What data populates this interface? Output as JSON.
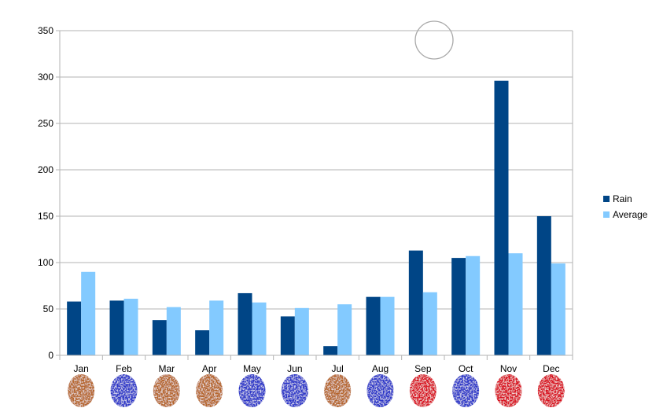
{
  "chart_data": {
    "type": "bar",
    "categories": [
      "Jan",
      "Feb",
      "Mar",
      "Apr",
      "May",
      "Jun",
      "Jul",
      "Aug",
      "Sep",
      "Oct",
      "Nov",
      "Dec"
    ],
    "series": [
      {
        "name": "Rain",
        "color": "#004586",
        "values": [
          58,
          59,
          38,
          27,
          67,
          42,
          10,
          63,
          113,
          105,
          296,
          150
        ]
      },
      {
        "name": "Average",
        "color": "#83caff",
        "values": [
          90,
          61,
          52,
          59,
          57,
          51,
          55,
          63,
          68,
          107,
          110,
          99
        ]
      }
    ],
    "ylim": [
      0,
      350
    ],
    "yticks": [
      0,
      50,
      100,
      150,
      200,
      250,
      300,
      350
    ],
    "grid": true,
    "legend_position": "right",
    "category_icons": [
      {
        "category": "Jan",
        "color": "brown"
      },
      {
        "category": "Feb",
        "color": "blue"
      },
      {
        "category": "Mar",
        "color": "brown"
      },
      {
        "category": "Apr",
        "color": "brown"
      },
      {
        "category": "May",
        "color": "blue"
      },
      {
        "category": "Jun",
        "color": "blue"
      },
      {
        "category": "Jul",
        "color": "brown"
      },
      {
        "category": "Aug",
        "color": "blue"
      },
      {
        "category": "Sep",
        "color": "red"
      },
      {
        "category": "Oct",
        "color": "blue"
      },
      {
        "category": "Nov",
        "color": "red"
      },
      {
        "category": "Dec",
        "color": "red"
      }
    ],
    "icon_colors": {
      "brown": "#b5652a",
      "blue": "#2a36c8",
      "red": "#d8101c"
    }
  }
}
